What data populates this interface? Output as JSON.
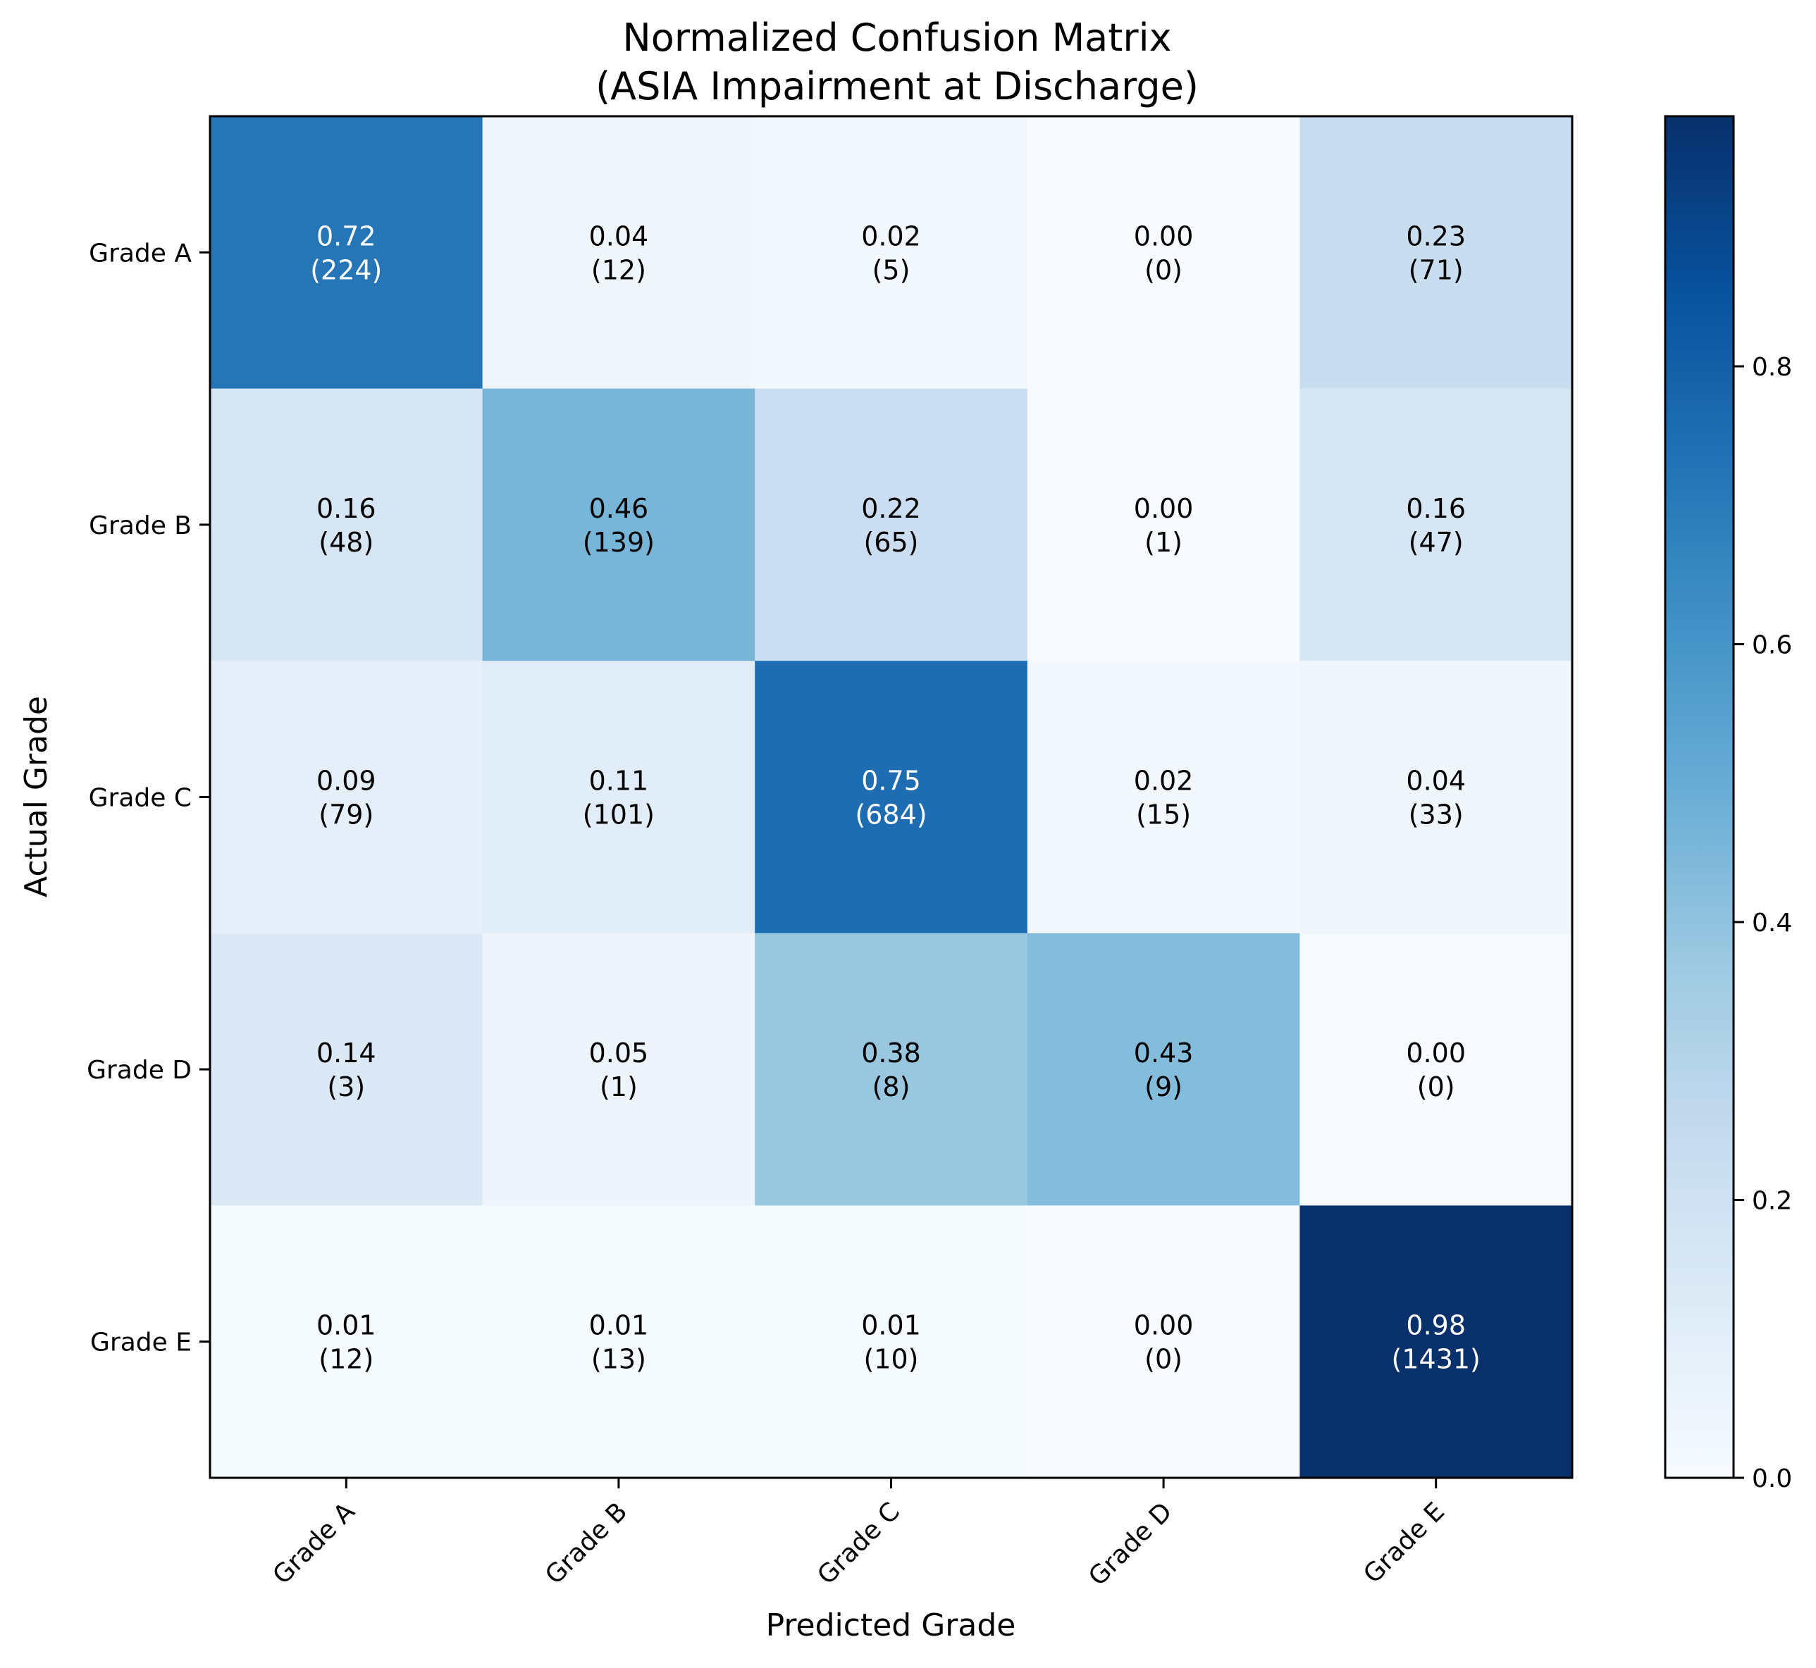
{
  "chart_data": {
    "type": "heatmap",
    "title": "Normalized Confusion Matrix",
    "subtitle": "(ASIA Impairment at Discharge)",
    "xlabel": "Predicted Grade",
    "ylabel": "Actual Grade",
    "x_categories": [
      "Grade A",
      "Grade B",
      "Grade C",
      "Grade D",
      "Grade E"
    ],
    "y_categories": [
      "Grade A",
      "Grade B",
      "Grade C",
      "Grade D",
      "Grade E"
    ],
    "values": [
      [
        0.72,
        0.04,
        0.02,
        0.0,
        0.23
      ],
      [
        0.16,
        0.46,
        0.22,
        0.0,
        0.16
      ],
      [
        0.09,
        0.11,
        0.75,
        0.02,
        0.04
      ],
      [
        0.14,
        0.05,
        0.38,
        0.43,
        0.0
      ],
      [
        0.01,
        0.01,
        0.01,
        0.0,
        0.98
      ]
    ],
    "value_labels": [
      [
        "0.72",
        "0.04",
        "0.02",
        "0.00",
        "0.23"
      ],
      [
        "0.16",
        "0.46",
        "0.22",
        "0.00",
        "0.16"
      ],
      [
        "0.09",
        "0.11",
        "0.75",
        "0.02",
        "0.04"
      ],
      [
        "0.14",
        "0.05",
        "0.38",
        "0.43",
        "0.00"
      ],
      [
        "0.01",
        "0.01",
        "0.01",
        "0.00",
        "0.98"
      ]
    ],
    "counts": [
      [
        "(224)",
        "(12)",
        "(5)",
        "(0)",
        "(71)"
      ],
      [
        "(48)",
        "(139)",
        "(65)",
        "(1)",
        "(47)"
      ],
      [
        "(79)",
        "(101)",
        "(684)",
        "(15)",
        "(33)"
      ],
      [
        "(3)",
        "(1)",
        "(8)",
        "(9)",
        "(0)"
      ],
      [
        "(12)",
        "(13)",
        "(10)",
        "(0)",
        "(1431)"
      ]
    ],
    "colormap": "Blues",
    "color_range": [
      0,
      0.98
    ],
    "colorbar": {
      "ticks": [
        0.0,
        0.2,
        0.4,
        0.6,
        0.8
      ],
      "tick_labels": [
        "0.0",
        "0.2",
        "0.4",
        "0.6",
        "0.8"
      ],
      "placement": "right"
    },
    "grid": false
  }
}
